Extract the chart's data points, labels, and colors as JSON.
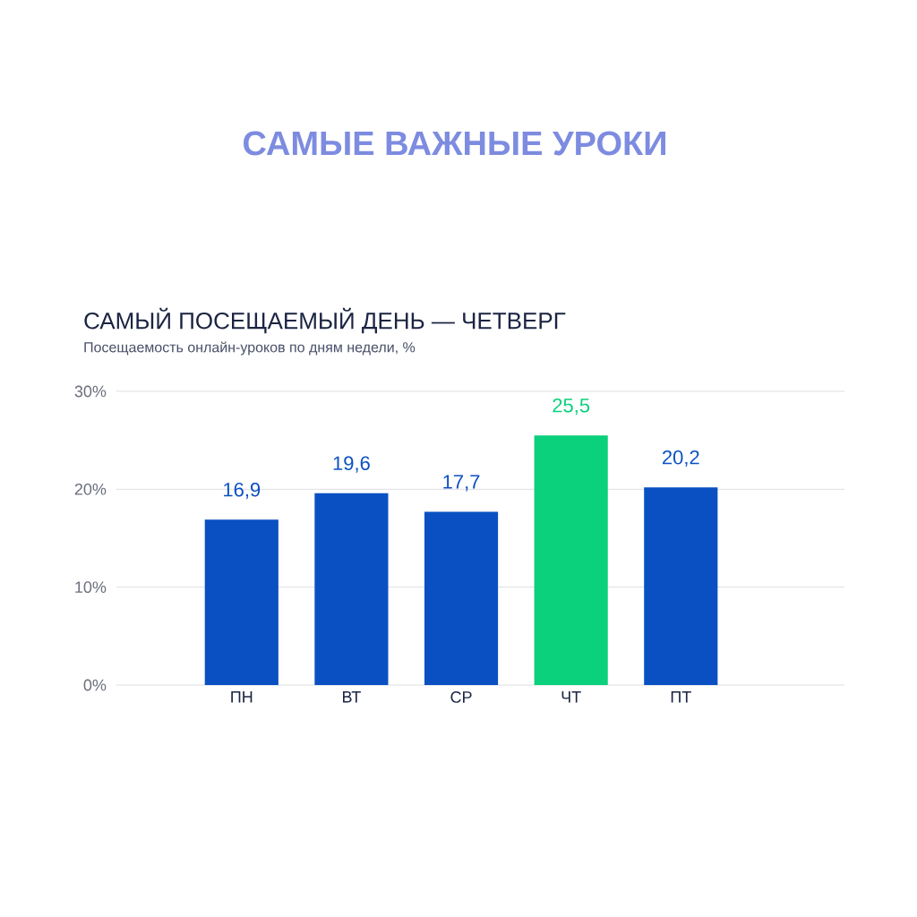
{
  "chart_data": {
    "type": "bar",
    "title": "САМЫЕ ВАЖНЫЕ УРОКИ",
    "subtitle": "САМЫЙ ПОСЕЩАЕМЫЙ ДЕНЬ — ЧЕТВЕРГ",
    "annotations": [
      "Посещаемость онлайн-уроков по дням недели, %"
    ],
    "categories": [
      "ПН",
      "ВТ",
      "СР",
      "ЧТ",
      "ПТ"
    ],
    "values": [
      16.9,
      19.6,
      17.7,
      25.5,
      20.2
    ],
    "value_labels": [
      "16,9",
      "19,6",
      "17,7",
      "25,5",
      "20,2"
    ],
    "colors": [
      "#0a50c2",
      "#0a50c2",
      "#0a50c2",
      "#0bd07c",
      "#0a50c2"
    ],
    "ylim": [
      0,
      30
    ],
    "yticks": [
      {
        "value": 0,
        "label": "0%"
      },
      {
        "value": 10,
        "label": "10%"
      },
      {
        "value": 20,
        "label": "20%"
      },
      {
        "value": 30,
        "label": "30%"
      }
    ],
    "grid": "y"
  }
}
